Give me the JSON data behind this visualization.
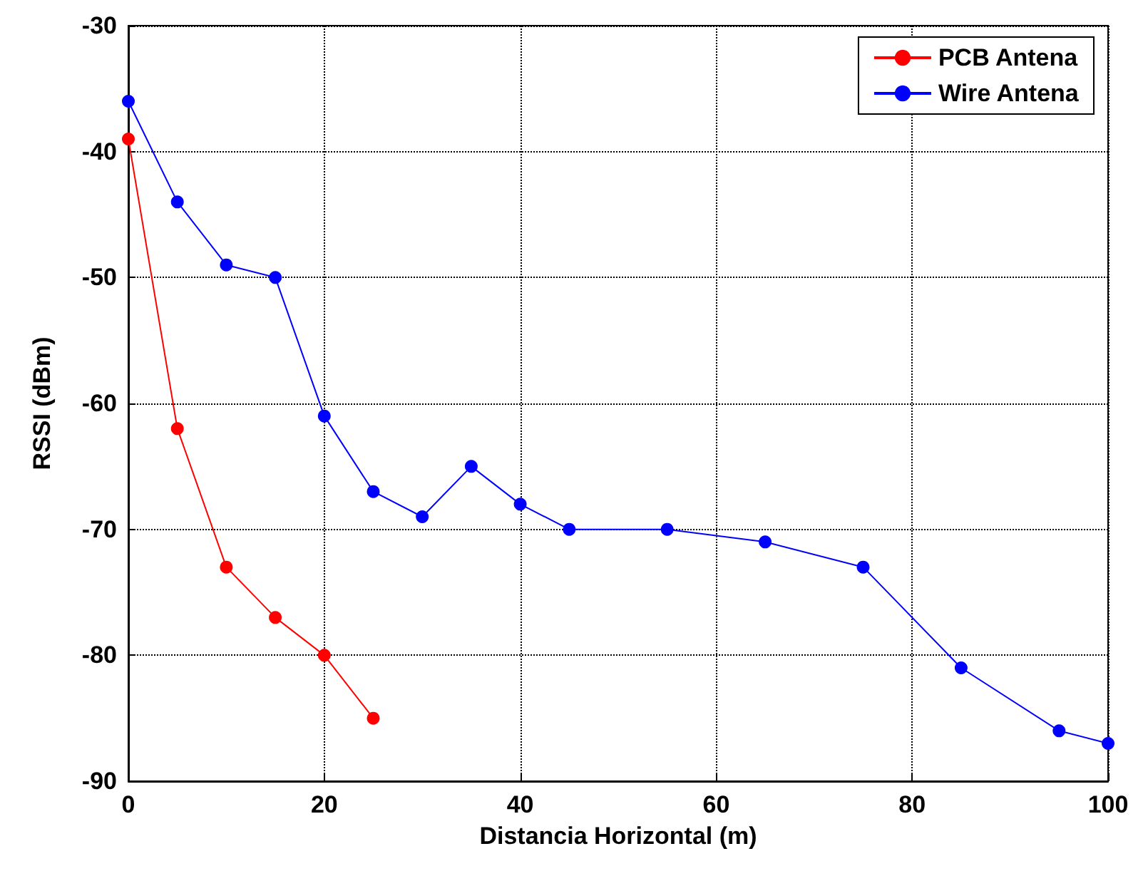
{
  "chart_data": {
    "type": "line",
    "xlabel": "Distancia Horizontal (m)",
    "ylabel": "RSSI (dBm)",
    "xlim": [
      0,
      100
    ],
    "xticks": [
      0,
      20,
      40,
      60,
      80,
      100
    ],
    "ylim": [
      -90,
      -30
    ],
    "yticks": [
      -90,
      -80,
      -70,
      -60,
      -50,
      -40,
      -30
    ],
    "grid": true,
    "legend": "top right",
    "marker": "circle",
    "line_style": "solid",
    "series": [
      {
        "name": "PCB Antena",
        "color": "#ff0000",
        "x": [
          0,
          5,
          10,
          15,
          20,
          25
        ],
        "values": [
          -39,
          -62,
          -73,
          -77,
          -80,
          -85
        ]
      },
      {
        "name": "Wire Antena",
        "color": "#0000ff",
        "x": [
          0,
          5,
          10,
          15,
          20,
          25,
          30,
          35,
          40,
          45,
          55,
          65,
          75,
          85,
          95,
          100
        ],
        "values": [
          -36,
          -44,
          -49,
          -50,
          -61,
          -67,
          -69,
          -65,
          -68,
          -70,
          -70,
          -71,
          -73,
          -81,
          -86,
          -87
        ]
      }
    ]
  }
}
